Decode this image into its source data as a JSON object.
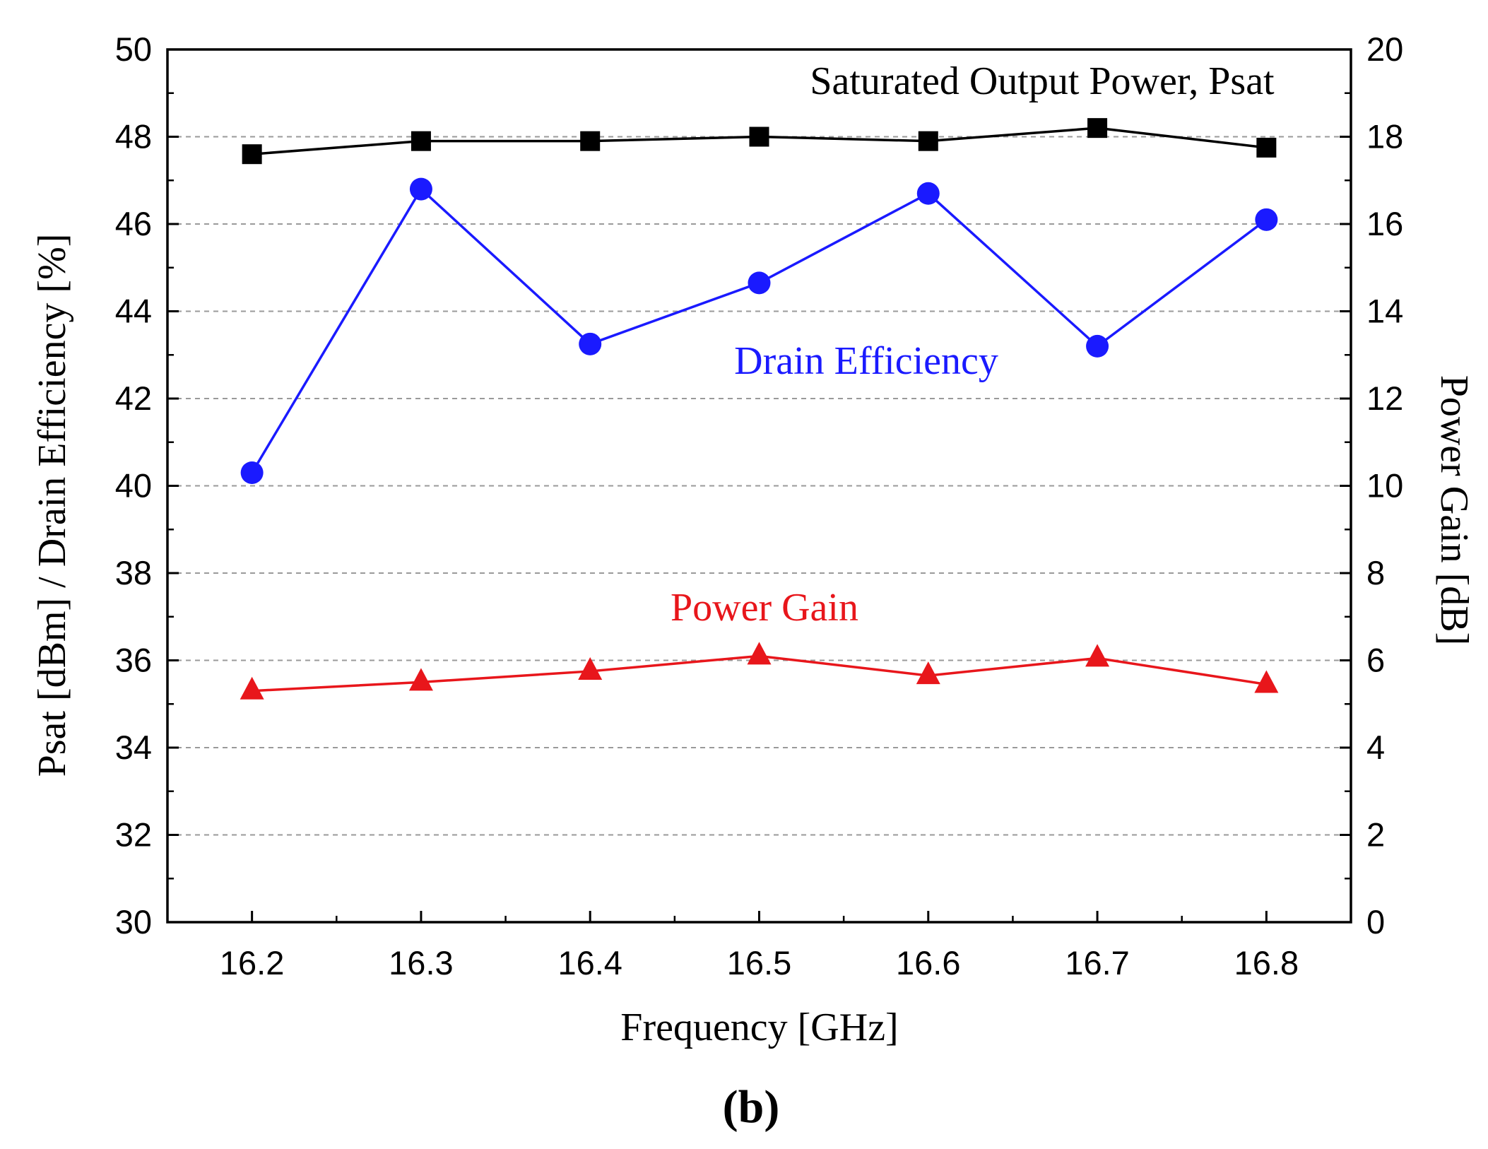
{
  "chart_data": {
    "type": "line",
    "title": "",
    "caption": "(b)",
    "xlabel": "Frequency [GHz]",
    "ylabel_left": "Psat [dBm] / Drain Efficiency [%]",
    "ylabel_right": "Power Gain [dB]",
    "x": [
      16.2,
      16.3,
      16.4,
      16.5,
      16.6,
      16.7,
      16.8
    ],
    "x_tick_labels": [
      "16.2",
      "16.3",
      "16.4",
      "16.5",
      "16.6",
      "16.7",
      "16.8"
    ],
    "xlim": [
      16.15,
      16.85
    ],
    "ylim_left": [
      30,
      50
    ],
    "ylim_right": [
      0,
      20
    ],
    "y_left_ticks": [
      "30",
      "32",
      "34",
      "36",
      "38",
      "40",
      "42",
      "44",
      "46",
      "48",
      "50"
    ],
    "y_right_ticks": [
      "0",
      "2",
      "4",
      "6",
      "8",
      "10",
      "12",
      "14",
      "16",
      "18",
      "20"
    ],
    "grid": "horizontal dashed",
    "legend": "none (series labelled by in-plot annotations)",
    "series": [
      {
        "name": "Saturated Output Power, Psat",
        "axis": "left",
        "marker": "square",
        "color": "#000000",
        "values": [
          47.6,
          47.9,
          47.9,
          48.0,
          47.9,
          48.2,
          47.75
        ]
      },
      {
        "name": "Drain Efficiency",
        "axis": "left",
        "marker": "circle",
        "color": "#1a1aff",
        "values": [
          40.3,
          46.8,
          43.25,
          44.65,
          46.7,
          43.2,
          46.1
        ]
      },
      {
        "name": "Power Gain",
        "axis": "right",
        "marker": "triangle",
        "color": "#e8161b",
        "values": [
          5.3,
          5.5,
          5.75,
          6.1,
          5.65,
          6.05,
          5.45
        ]
      }
    ]
  }
}
